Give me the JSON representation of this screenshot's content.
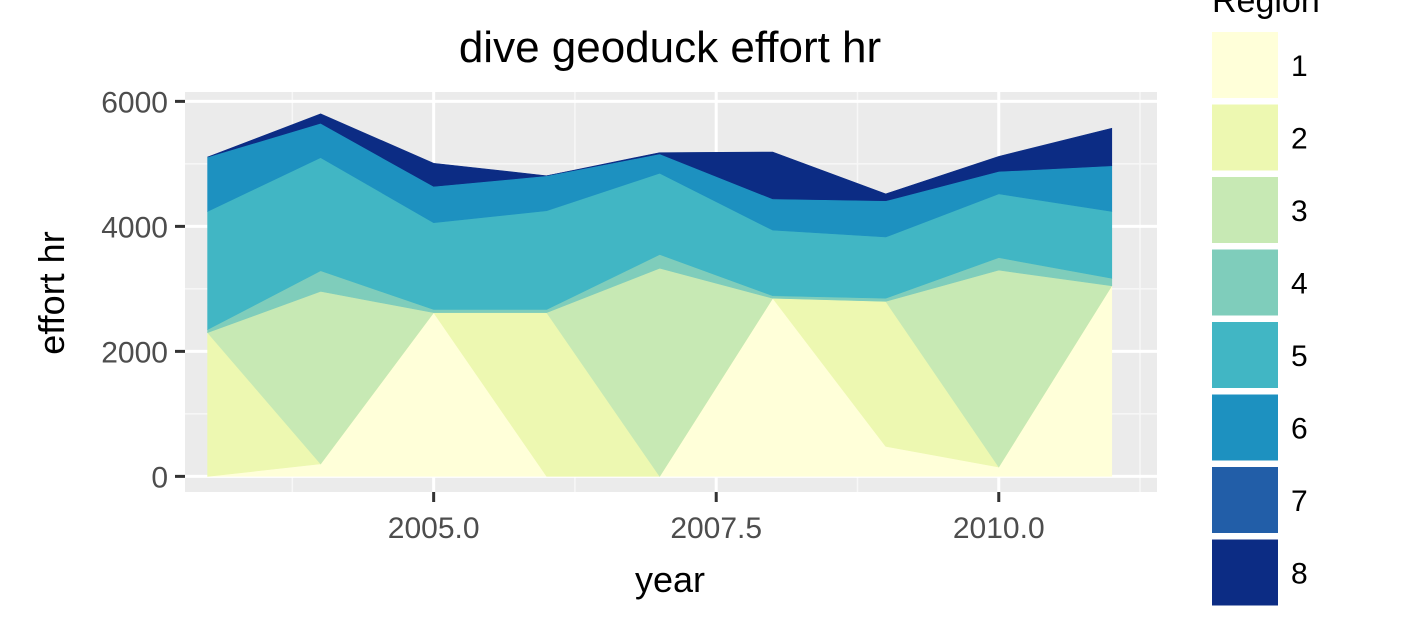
{
  "chart_data": {
    "type": "area",
    "stacked": true,
    "title": "dive geoduck effort hr",
    "xlabel": "year",
    "ylabel": "effort hr",
    "xlim": [
      2002.8,
      2011.4
    ],
    "ylim": [
      -250,
      6150
    ],
    "x_ticks": [
      2005.0,
      2007.5,
      2010.0
    ],
    "x_tick_labels": [
      "2005.0",
      "2007.5",
      "2010.0"
    ],
    "y_ticks": [
      0,
      2000,
      4000,
      6000
    ],
    "y_tick_labels": [
      "0",
      "2000",
      "4000",
      "6000"
    ],
    "grid": true,
    "legend": {
      "title": "Region",
      "position": "right"
    },
    "x": [
      2003,
      2004,
      2005,
      2006,
      2007,
      2008,
      2009,
      2010,
      2011
    ],
    "series": [
      {
        "name": "1",
        "color": "#ffffd9",
        "values": [
          0,
          200,
          2620,
          0,
          0,
          2850,
          480,
          150,
          3050
        ]
      },
      {
        "name": "2",
        "color": "#edf8b1",
        "values": [
          2300,
          0,
          0,
          2620,
          0,
          0,
          2320,
          0,
          0
        ]
      },
      {
        "name": "3",
        "color": "#c7e9b4",
        "values": [
          0,
          2760,
          0,
          0,
          3330,
          0,
          0,
          3150,
          0
        ]
      },
      {
        "name": "4",
        "color": "#7fcdbb",
        "values": [
          50,
          330,
          50,
          50,
          220,
          40,
          50,
          200,
          120
        ]
      },
      {
        "name": "5",
        "color": "#41b6c4",
        "values": [
          1890,
          1810,
          1390,
          1580,
          1300,
          1050,
          980,
          1020,
          1070
        ]
      },
      {
        "name": "6",
        "color": "#1d91c0",
        "values": [
          870,
          550,
          580,
          560,
          310,
          500,
          580,
          360,
          730
        ]
      },
      {
        "name": "7",
        "color": "#225ea8",
        "values": [
          0,
          0,
          0,
          0,
          0,
          0,
          0,
          0,
          0
        ]
      },
      {
        "name": "8",
        "color": "#0c2c84",
        "values": [
          0,
          150,
          370,
          0,
          20,
          750,
          110,
          240,
          600
        ]
      }
    ]
  }
}
